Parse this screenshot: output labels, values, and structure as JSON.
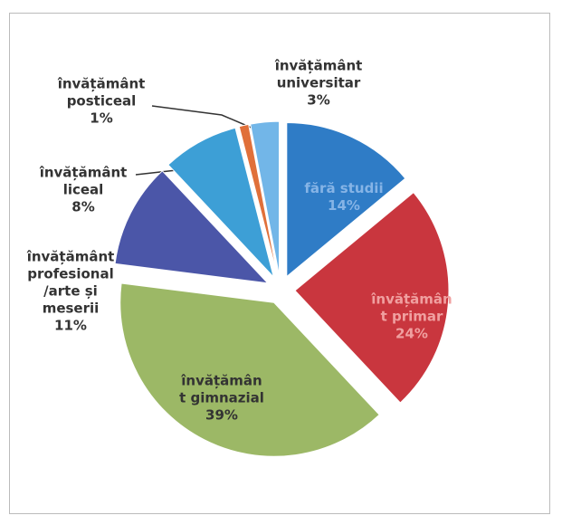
{
  "chart_data": {
    "type": "pie",
    "categories": [
      "fără studii",
      "învățămân\nt primar",
      "învățămân\nt gimnazial",
      "învățământ\nprofesional\n/arte și\nmeserii",
      "învățământ\nliceal",
      "învățământ\nposticeal",
      "învățământ\nuniversitar"
    ],
    "values": [
      14,
      24,
      39,
      11,
      8,
      1,
      3
    ],
    "value_labels": [
      "14%",
      "24%",
      "39%",
      "11%",
      "8%",
      "1%",
      "3%"
    ],
    "colors": [
      "#2f7cc6",
      "#c9363e",
      "#9cb866",
      "#4b56a8",
      "#3d9fd6",
      "#e0703a",
      "#72b6e8"
    ]
  }
}
